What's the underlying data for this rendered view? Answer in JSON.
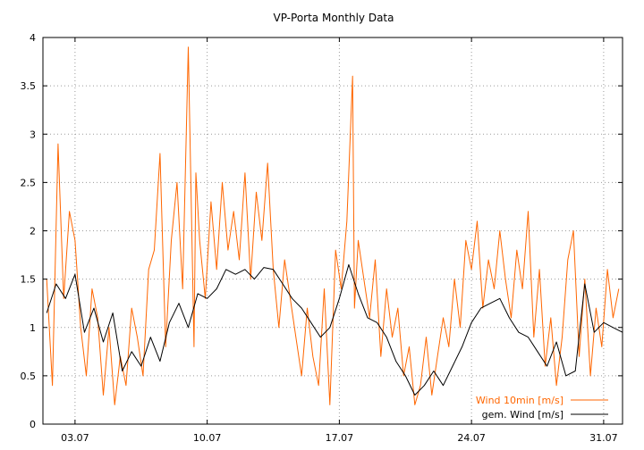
{
  "chart_data": {
    "type": "line",
    "title": "VP-Porta Monthly Data",
    "xlabel": "",
    "ylabel": "",
    "xlim": [
      1.3,
      32.0
    ],
    "ylim": [
      0,
      4
    ],
    "grid": true,
    "legend_position": "bottom-right",
    "x_tick_values": [
      3,
      10,
      17,
      24,
      31
    ],
    "x_tick_labels": [
      "03.07",
      "10.07",
      "17.07",
      "24.07",
      "31.07"
    ],
    "y_tick_values": [
      0,
      0.5,
      1,
      1.5,
      2,
      2.5,
      3,
      3.5,
      4
    ],
    "y_tick_labels": [
      "0",
      "0.5",
      "1",
      "1.5",
      "2",
      "2.5",
      "3",
      "3.5",
      "4"
    ],
    "series": [
      {
        "name": "Wind 10min [m/s]",
        "color": "#ff6600",
        "x": [
          1.5,
          1.8,
          2.1,
          2.4,
          2.7,
          3.0,
          3.3,
          3.6,
          3.9,
          4.2,
          4.5,
          4.8,
          5.1,
          5.4,
          5.7,
          6.0,
          6.3,
          6.6,
          6.9,
          7.2,
          7.5,
          7.8,
          8.1,
          8.4,
          8.7,
          9.0,
          9.3,
          9.4,
          9.6,
          9.9,
          10.2,
          10.5,
          10.8,
          11.1,
          11.4,
          11.7,
          12.0,
          12.3,
          12.6,
          12.9,
          13.2,
          13.5,
          13.8,
          14.1,
          14.4,
          14.7,
          15.0,
          15.3,
          15.6,
          15.9,
          16.2,
          16.5,
          16.8,
          17.1,
          17.4,
          17.7,
          17.8,
          18.0,
          18.3,
          18.6,
          18.9,
          19.2,
          19.5,
          19.8,
          20.1,
          20.4,
          20.7,
          21.0,
          21.3,
          21.6,
          21.9,
          22.2,
          22.5,
          22.8,
          23.1,
          23.4,
          23.7,
          24.0,
          24.3,
          24.6,
          24.9,
          25.2,
          25.5,
          25.8,
          26.1,
          26.4,
          26.7,
          27.0,
          27.3,
          27.6,
          27.9,
          28.2,
          28.5,
          28.8,
          29.1,
          29.4,
          29.7,
          30.0,
          30.3,
          30.6,
          30.9,
          31.2,
          31.5,
          31.8
        ],
        "y": [
          1.5,
          0.4,
          2.9,
          1.3,
          2.2,
          1.9,
          1.0,
          0.5,
          1.4,
          1.1,
          0.3,
          1.0,
          0.2,
          0.7,
          0.4,
          1.2,
          0.9,
          0.5,
          1.6,
          1.8,
          2.8,
          0.8,
          1.9,
          2.5,
          1.4,
          3.9,
          0.8,
          2.6,
          1.9,
          1.3,
          2.3,
          1.6,
          2.5,
          1.8,
          2.2,
          1.7,
          2.6,
          1.5,
          2.4,
          1.9,
          2.7,
          1.6,
          1.0,
          1.7,
          1.3,
          0.9,
          0.5,
          1.2,
          0.7,
          0.4,
          1.4,
          0.2,
          1.8,
          1.4,
          2.1,
          3.6,
          1.2,
          1.9,
          1.5,
          1.1,
          1.7,
          0.7,
          1.4,
          0.9,
          1.2,
          0.5,
          0.8,
          0.2,
          0.4,
          0.9,
          0.3,
          0.7,
          1.1,
          0.8,
          1.5,
          1.0,
          1.9,
          1.6,
          2.1,
          1.2,
          1.7,
          1.4,
          2.0,
          1.5,
          1.1,
          1.8,
          1.4,
          2.2,
          0.9,
          1.6,
          0.6,
          1.1,
          0.4,
          0.9,
          1.7,
          2.0,
          0.7,
          1.5,
          0.5,
          1.2,
          0.8,
          1.6,
          1.1,
          1.4
        ]
      },
      {
        "name": "gem. Wind [m/s]",
        "color": "#000000",
        "x": [
          1.5,
          2.0,
          2.5,
          3.0,
          3.5,
          4.0,
          4.5,
          5.0,
          5.5,
          6.0,
          6.5,
          7.0,
          7.5,
          8.0,
          8.5,
          9.0,
          9.5,
          10.0,
          10.5,
          11.0,
          11.5,
          12.0,
          12.5,
          13.0,
          13.5,
          14.0,
          14.5,
          15.0,
          15.5,
          16.0,
          16.5,
          17.0,
          17.5,
          18.0,
          18.5,
          19.0,
          19.5,
          20.0,
          20.5,
          21.0,
          21.5,
          22.0,
          22.5,
          23.0,
          23.5,
          24.0,
          24.5,
          25.0,
          25.5,
          26.0,
          26.5,
          27.0,
          27.5,
          28.0,
          28.5,
          29.0,
          29.5,
          30.0,
          30.5,
          31.0,
          31.5,
          32.0
        ],
        "y": [
          1.15,
          1.45,
          1.3,
          1.55,
          0.95,
          1.2,
          0.85,
          1.15,
          0.55,
          0.75,
          0.6,
          0.9,
          0.65,
          1.05,
          1.25,
          1.0,
          1.35,
          1.3,
          1.4,
          1.6,
          1.55,
          1.6,
          1.5,
          1.62,
          1.6,
          1.45,
          1.3,
          1.2,
          1.05,
          0.9,
          1.0,
          1.3,
          1.65,
          1.35,
          1.1,
          1.05,
          0.9,
          0.65,
          0.5,
          0.3,
          0.4,
          0.55,
          0.4,
          0.6,
          0.8,
          1.05,
          1.2,
          1.25,
          1.3,
          1.1,
          0.95,
          0.9,
          0.75,
          0.6,
          0.85,
          0.5,
          0.55,
          1.45,
          0.95,
          1.05,
          1.0,
          0.95
        ]
      }
    ]
  }
}
